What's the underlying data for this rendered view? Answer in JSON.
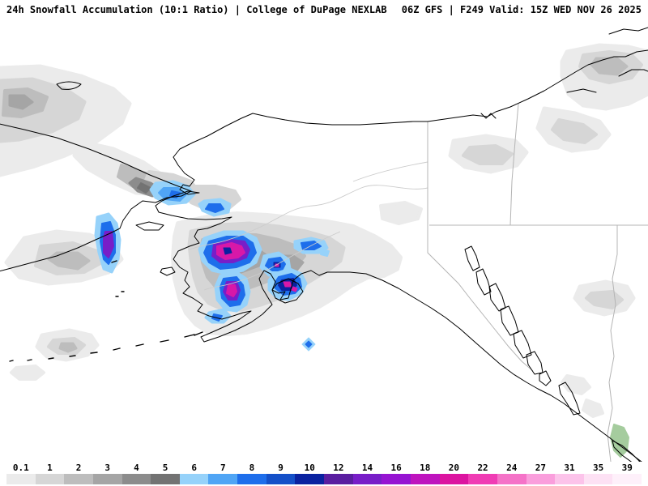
{
  "header": {
    "left_title": "24h Snowfall Accumulation (10:1 Ratio) | College of DuPage NEXLAB",
    "right_title": "06Z GFS | F249 Valid: 15Z WED NOV 26 2025"
  },
  "colorbar": {
    "ticks": [
      "0.1",
      "1",
      "2",
      "3",
      "4",
      "5",
      "6",
      "7",
      "8",
      "9",
      "10",
      "12",
      "14",
      "16",
      "18",
      "20",
      "22",
      "24",
      "27",
      "31",
      "35",
      "39"
    ],
    "colors": [
      "#ebebeb",
      "#d6d6d6",
      "#bdbdbd",
      "#a5a5a5",
      "#8c8c8c",
      "#737373",
      "#96d2fa",
      "#50a5f5",
      "#1e6eeb",
      "#1450c8",
      "#0a22a0",
      "#5a1ea0",
      "#781ec8",
      "#9614d2",
      "#be14be",
      "#dc14a0",
      "#f03cb4",
      "#f573c8",
      "#fa9edc",
      "#fcc3ea",
      "#fde1f4",
      "#fef0fa"
    ]
  },
  "map": {
    "snow_regions": [
      {
        "area": "Chukotka coast (Russia, left edge)",
        "peak_shade": "purple ~12-16"
      },
      {
        "area": "Bering Strait",
        "peak_shade": "light blue ~6-8"
      },
      {
        "area": "Seward Peninsula",
        "peak_shade": "light blue ~6-8"
      },
      {
        "area": "Southwest Alaska / Alaska Range",
        "peak_shade": "magenta ~18-24"
      },
      {
        "area": "Alaska Peninsula / Katmai",
        "peak_shade": "magenta ~18-24"
      },
      {
        "area": "Cook Inlet / Kenai",
        "peak_shade": "navy ~10-12"
      },
      {
        "area": "Kodiak Island",
        "peak_shade": "navy-magenta ~12-20"
      },
      {
        "area": "Gulf of Alaska isolated spot",
        "peak_shade": "light blue ~6-7"
      },
      {
        "area": "Canadian Arctic islands (top right)",
        "peak_shade": "gray ~2-4"
      },
      {
        "area": "Northwest Canada interior",
        "peak_shade": "gray ~1-2"
      }
    ]
  }
}
